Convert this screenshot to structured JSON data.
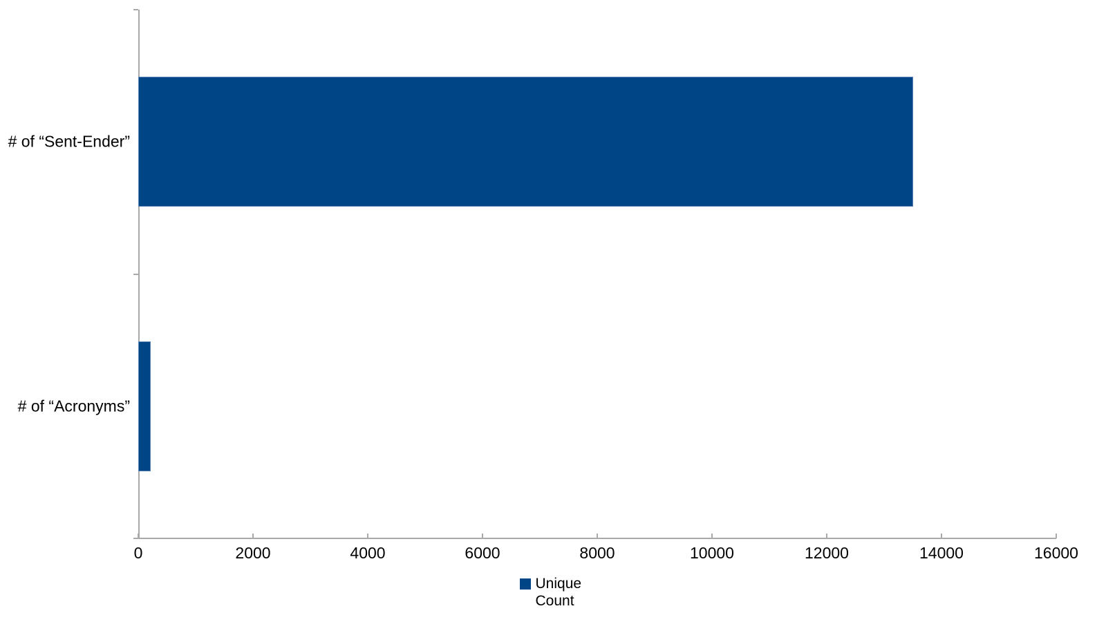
{
  "chart_data": {
    "type": "bar",
    "orientation": "horizontal",
    "title": "",
    "xlabel": "",
    "ylabel": "",
    "categories": [
      "# of “Sent-Ender”",
      "# of “Acronyms”"
    ],
    "series": [
      {
        "name": "Unique Count",
        "values": [
          13500,
          215
        ]
      }
    ],
    "xlim": [
      0,
      16000
    ],
    "xticks": [
      0,
      2000,
      4000,
      6000,
      8000,
      10000,
      12000,
      14000,
      16000
    ],
    "grid": false,
    "legend_position": "bottom",
    "colors": {
      "series": "#004586",
      "bar_border": "#5b84b4",
      "axis": "#a9a9a9",
      "text": "#000000",
      "background": "#ffffff"
    }
  }
}
